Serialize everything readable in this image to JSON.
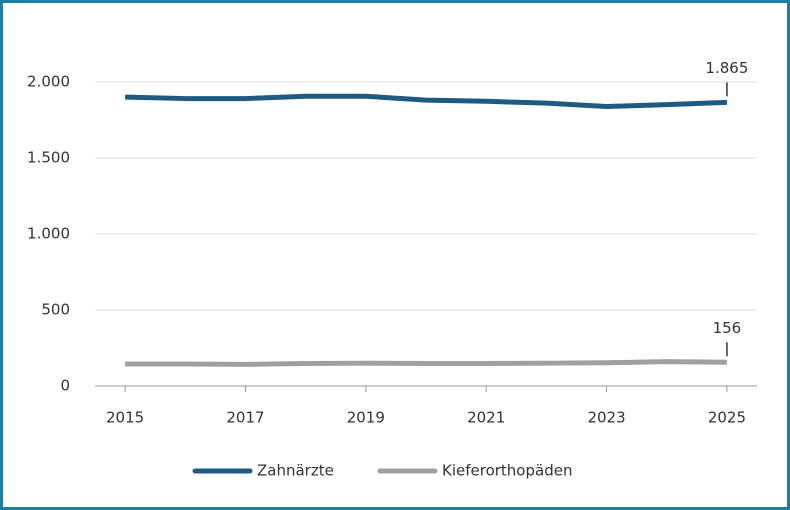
{
  "chart_data": {
    "type": "line",
    "x": [
      2015,
      2016,
      2017,
      2018,
      2019,
      2020,
      2021,
      2022,
      2023,
      2024,
      2025
    ],
    "series": [
      {
        "name": "Zahnärzte",
        "color": "#1f5a82",
        "values": [
          1900,
          1890,
          1890,
          1905,
          1905,
          1880,
          1872,
          1860,
          1838,
          1850,
          1865
        ],
        "value_labels": [
          null,
          null,
          null,
          null,
          null,
          null,
          null,
          null,
          null,
          null,
          "1.865"
        ]
      },
      {
        "name": "Kieferorthopäden",
        "color": "#a0a0a0",
        "values": [
          145,
          145,
          142,
          148,
          150,
          148,
          148,
          150,
          153,
          160,
          156
        ],
        "value_labels": [
          null,
          null,
          null,
          null,
          null,
          null,
          null,
          null,
          null,
          null,
          "156"
        ]
      }
    ],
    "xlim": [
      2014.5,
      2025.5
    ],
    "xticks": [
      2015,
      2017,
      2019,
      2021,
      2023,
      2025
    ],
    "ylim": [
      0,
      2400
    ],
    "yticks": [
      0,
      500,
      {
        "value": 1000,
        "label": "1.000"
      },
      {
        "value": 1500,
        "label": "1.500"
      },
      {
        "value": 2000,
        "label": "2.000"
      }
    ],
    "grid": true,
    "legend": "bottom"
  }
}
